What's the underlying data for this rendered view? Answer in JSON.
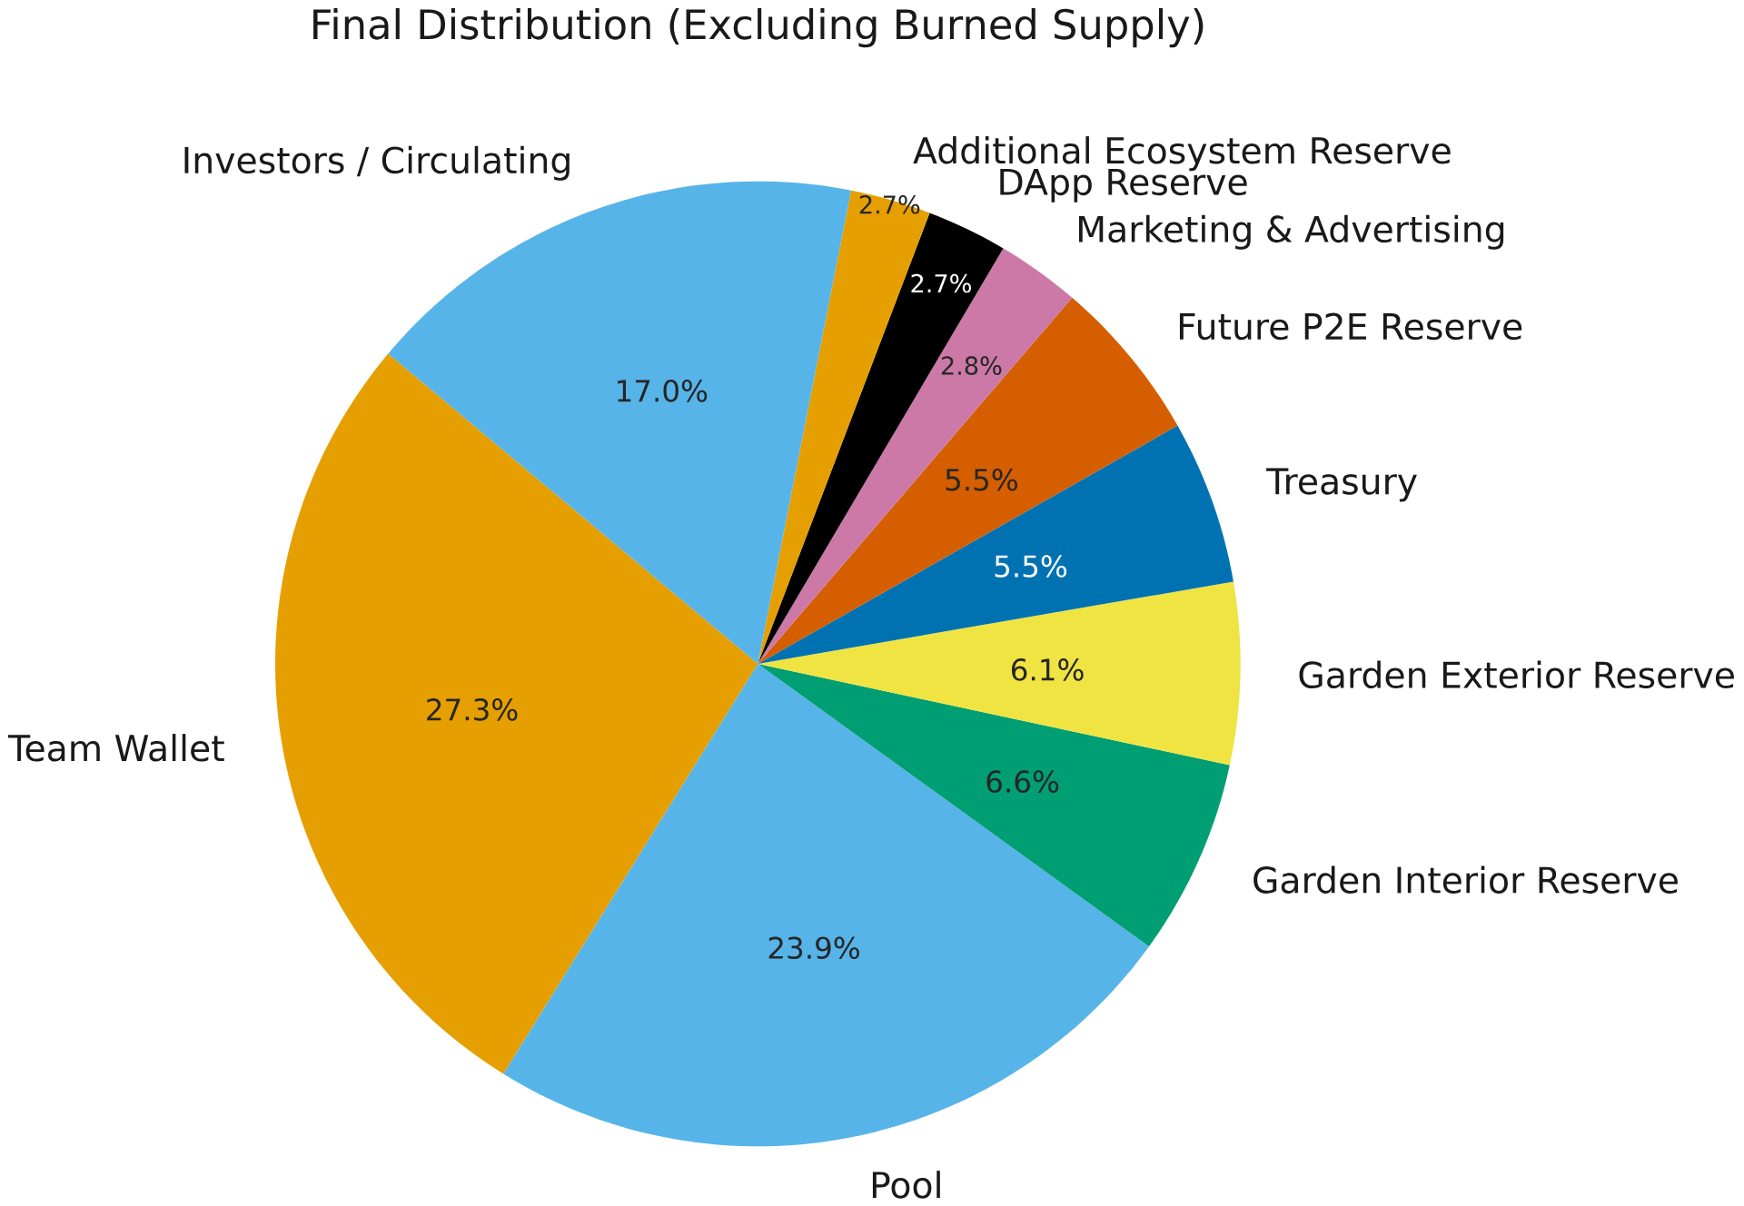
{
  "chart_data": {
    "type": "pie",
    "title": "Final Distribution (Excluding Burned Supply)",
    "categories": [
      "Team Wallet",
      "Pool",
      "Garden Interior Reserve",
      "Garden Exterior Reserve",
      "Treasury",
      "Future P2E Reserve",
      "Marketing & Advertising",
      "DApp Reserve",
      "Additional Ecosystem Reserve",
      "Investors / Circulating"
    ],
    "values": [
      27.3,
      23.9,
      6.6,
      6.1,
      5.5,
      5.5,
      2.8,
      2.7,
      2.7,
      17.0
    ],
    "value_labels": [
      "27.3%",
      "23.9%",
      "6.6%",
      "6.1%",
      "5.5%",
      "5.5%",
      "2.8%",
      "2.7%",
      "2.7%",
      "17.0%"
    ],
    "colors": [
      "#e69f00",
      "#56b4e9",
      "#009e73",
      "#f0e442",
      "#0072b2",
      "#d55e00",
      "#cc79a7",
      "#000000",
      "#e69f00",
      "#56b4e9"
    ]
  }
}
